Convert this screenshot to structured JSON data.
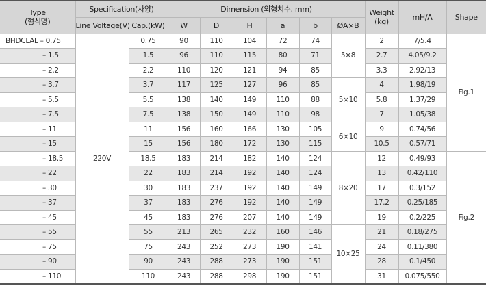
{
  "header": {
    "type": [
      "Type",
      "(형식명)"
    ],
    "specification": "Specification(사양)",
    "dimension": "Dimension (외형치수, mm)",
    "weight": [
      "Weight",
      "(kg)"
    ],
    "mha": "mH/A",
    "shape": "Shape",
    "sub": [
      "Line Voltage(V)",
      "Cap.(kW)",
      "W",
      "D",
      "H",
      "a",
      "b",
      "ØA×B"
    ]
  },
  "line_voltage": "220V",
  "shapes": [
    {
      "label": "Fig.1",
      "groups": [
        {
          "label": "5×8",
          "rows": [
            [
              "BHDCLAL – 0.75",
              "0.75",
              "90",
              "110",
              "104",
              "72",
              "74",
              "2",
              "7/5.4"
            ],
            [
              "– 1.5",
              "1.5",
              "96",
              "110",
              "115",
              "80",
              "71",
              "2.7",
              "4.05/9.2"
            ],
            [
              "– 2.2",
              "2.2",
              "110",
              "120",
              "121",
              "94",
              "85",
              "3.3",
              "2.92/13"
            ]
          ]
        },
        {
          "label": "5×10",
          "rows": [
            [
              "– 3.7",
              "3.7",
              "117",
              "125",
              "127",
              "96",
              "85",
              "4",
              "1.98/19"
            ],
            [
              "– 5.5",
              "5.5",
              "138",
              "140",
              "149",
              "110",
              "88",
              "5.8",
              "1.37/29"
            ],
            [
              "– 7.5",
              "7.5",
              "138",
              "150",
              "149",
              "110",
              "98",
              "7",
              "1.05/38"
            ]
          ]
        },
        {
          "label": "6×10",
          "rows": [
            [
              "– 11",
              "11",
              "156",
              "160",
              "166",
              "130",
              "105",
              "9",
              "0.74/56"
            ],
            [
              "– 15",
              "15",
              "156",
              "180",
              "172",
              "130",
              "115",
              "10.5",
              "0.57/71"
            ]
          ]
        }
      ]
    },
    {
      "label": "Fig.2",
      "groups": [
        {
          "label": "8×20",
          "rows": [
            [
              "– 18.5",
              "18.5",
              "183",
              "214",
              "182",
              "140",
              "124",
              "12",
              "0.49/93"
            ],
            [
              "– 22",
              "22",
              "183",
              "214",
              "192",
              "140",
              "124",
              "13",
              "0.42/110"
            ],
            [
              "– 30",
              "30",
              "183",
              "237",
              "192",
              "140",
              "149",
              "17",
              "0.3/152"
            ],
            [
              "– 37",
              "37",
              "183",
              "276",
              "192",
              "140",
              "149",
              "17.2",
              "0.25/185"
            ],
            [
              "– 45",
              "45",
              "183",
              "276",
              "207",
              "140",
              "149",
              "19",
              "0.2/225"
            ]
          ]
        },
        {
          "label": "10×25",
          "rows": [
            [
              "– 55",
              "55",
              "213",
              "265",
              "232",
              "160",
              "146",
              "21",
              "0.18/275"
            ],
            [
              "– 75",
              "75",
              "243",
              "252",
              "273",
              "190",
              "141",
              "24",
              "0.11/380"
            ],
            [
              "– 90",
              "90",
              "243",
              "288",
              "273",
              "190",
              "151",
              "28",
              "0.1/450"
            ],
            [
              "– 110",
              "110",
              "243",
              "288",
              "298",
              "190",
              "151",
              "31",
              "0.075/550"
            ]
          ]
        }
      ]
    }
  ]
}
